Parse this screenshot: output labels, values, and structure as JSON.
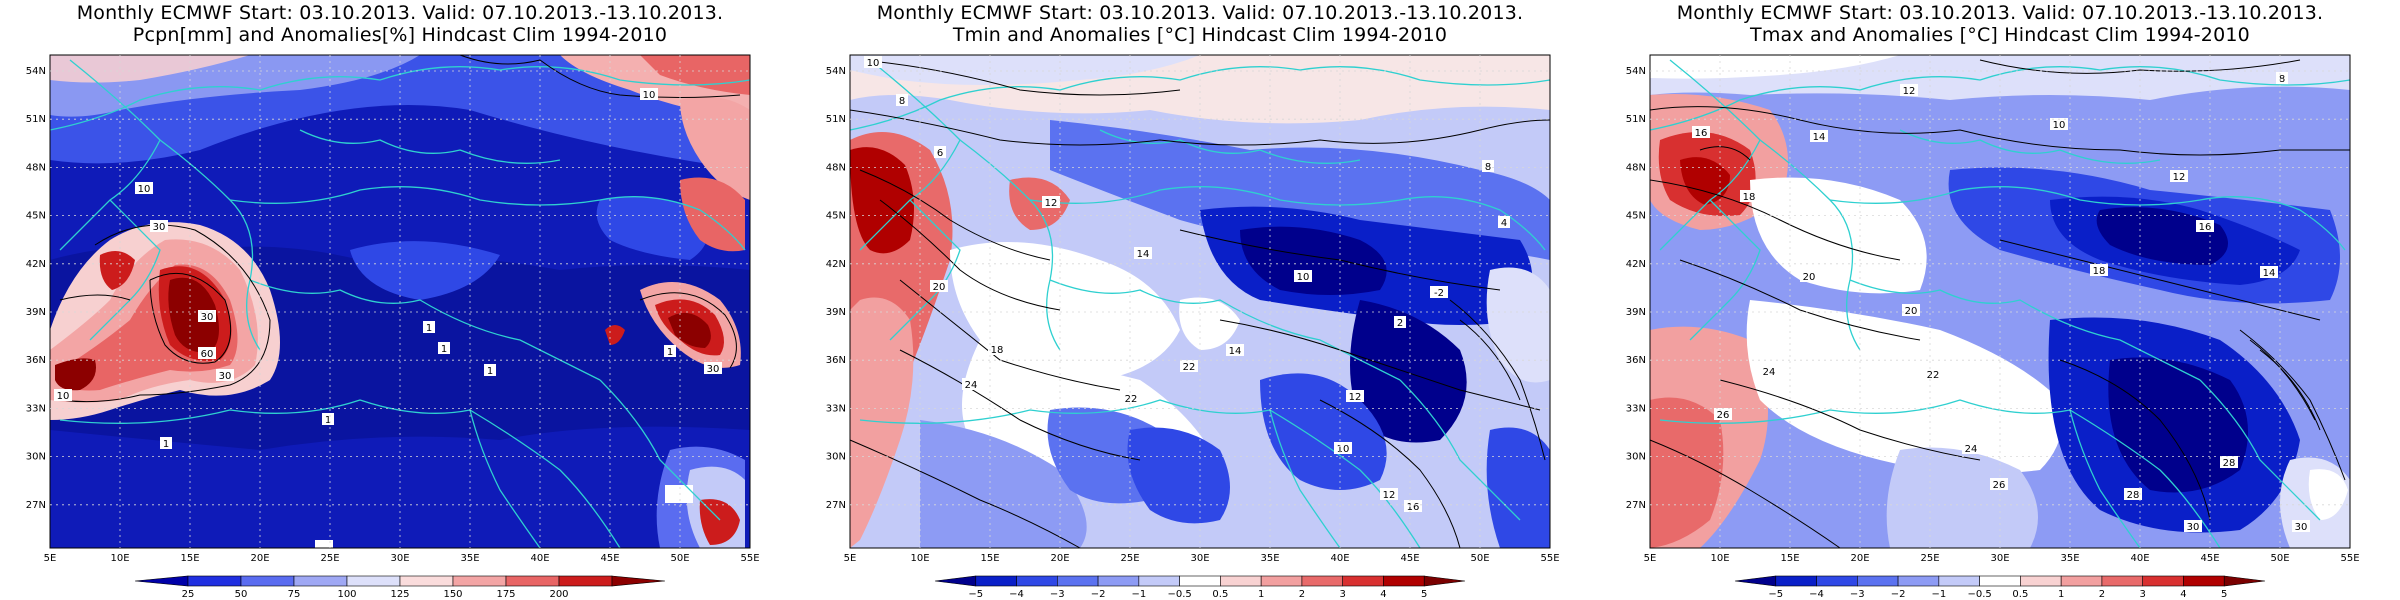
{
  "panels": [
    {
      "title_line1": "Monthly ECMWF Start: 03.10.2013. Valid: 07.10.2013.-13.10.2013.",
      "title_line2": "Pcpn[mm] and Anomalies[%] Hindcast Clim 1994-2010",
      "colorbar_labels": [
        "25",
        "50",
        "75",
        "100",
        "125",
        "150",
        "175",
        "200"
      ],
      "colorbar_colors": [
        "#0000a8",
        "#1f2fe0",
        "#5a6cf0",
        "#9fa8f4",
        "#dde0fa",
        "#fadcdc",
        "#f3a5a5",
        "#e86565",
        "#cc1c1c",
        "#8c0000"
      ],
      "contour_labels": [
        "10",
        "10",
        "30",
        "30",
        "60",
        "30",
        "1",
        "1",
        "1",
        "1",
        "1",
        "10",
        "1",
        "30"
      ]
    },
    {
      "title_line1": "Monthly ECMWF Start: 03.10.2013. Valid: 07.10.2013.-13.10.2013.",
      "title_line2": "Tmin and Anomalies [°C] Hindcast Clim 1994-2010",
      "colorbar_labels": [
        "−5",
        "−4",
        "−3",
        "−2",
        "−1",
        "−0.5",
        "0.5",
        "1",
        "2",
        "3",
        "4",
        "5"
      ],
      "colorbar_colors": [
        "#00008c",
        "#0a1fc8",
        "#2f48e6",
        "#5b72f0",
        "#8d9bf4",
        "#c3caf8",
        "#ffffff",
        "#f8d2d2",
        "#f2a0a0",
        "#e86a6a",
        "#d83030",
        "#b00000",
        "#7a0000"
      ],
      "contour_labels": [
        "10",
        "8",
        "6",
        "12",
        "14",
        "20",
        "24",
        "22",
        "18",
        "12",
        "10",
        "14",
        "16",
        "12",
        "8",
        "4",
        "2",
        "-2",
        "22",
        "10"
      ]
    },
    {
      "title_line1": "Monthly ECMWF Start: 03.10.2013. Valid: 07.10.2013.-13.10.2013.",
      "title_line2": "Tmax and Anomalies [°C] Hindcast Clim 1994-2010",
      "colorbar_labels": [
        "−5",
        "−4",
        "−3",
        "−2",
        "−1",
        "−0.5",
        "0.5",
        "1",
        "2",
        "3",
        "4",
        "5"
      ],
      "colorbar_colors": [
        "#00008c",
        "#0a1fc8",
        "#2f48e6",
        "#5b72f0",
        "#8d9bf4",
        "#c3caf8",
        "#ffffff",
        "#f8d2d2",
        "#f2a0a0",
        "#e86a6a",
        "#d83030",
        "#b00000",
        "#7a0000"
      ],
      "contour_labels": [
        "8",
        "12",
        "14",
        "16",
        "18",
        "20",
        "24",
        "26",
        "28",
        "30",
        "10",
        "12",
        "14",
        "16",
        "18",
        "20",
        "22",
        "24",
        "26",
        "28",
        "30"
      ]
    }
  ],
  "lat_labels": [
    "54N",
    "51N",
    "48N",
    "45N",
    "42N",
    "39N",
    "36N",
    "33N",
    "30N",
    "27N"
  ],
  "lon_labels": [
    "5E",
    "10E",
    "15E",
    "20E",
    "25E",
    "30E",
    "35E",
    "40E",
    "45E",
    "50E",
    "55E"
  ]
}
